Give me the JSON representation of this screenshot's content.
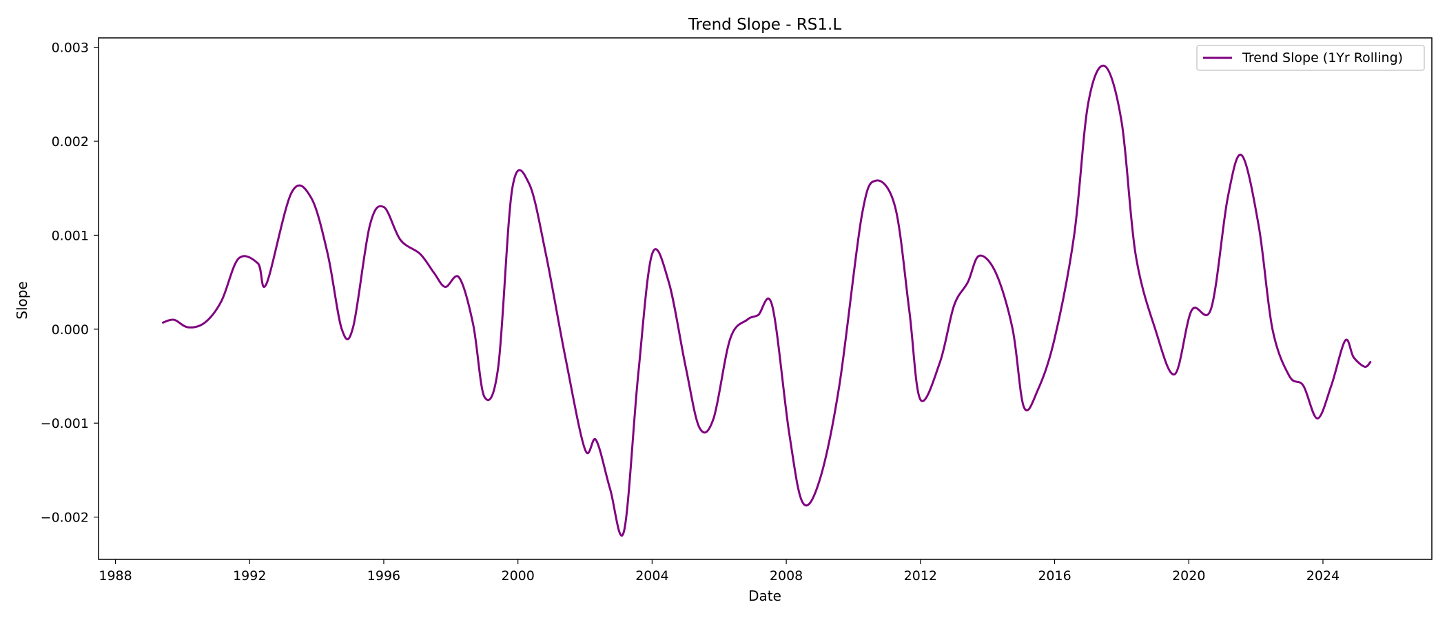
{
  "chart_data": {
    "type": "line",
    "title": "Trend Slope - RS1.L",
    "xlabel": "Date",
    "ylabel": "Slope",
    "x_ticks": [
      "1988",
      "1992",
      "1996",
      "2000",
      "2004",
      "2008",
      "2012",
      "2016",
      "2020",
      "2024"
    ],
    "y_ticks": [
      "−0.002",
      "−0.001",
      "0.000",
      "0.001",
      "0.002",
      "0.003"
    ],
    "xlim": [
      "1987-07-01",
      "2027-04-01"
    ],
    "ylim": [
      -0.00245,
      0.0031
    ],
    "grid": false,
    "legend": "top-right",
    "series": [
      {
        "name": "Trend Slope (1Yr Rolling)",
        "color": "#800080",
        "points": [
          [
            "1989-06-01",
            7e-05
          ],
          [
            "1989-10-01",
            0.0001
          ],
          [
            "1990-03-01",
            2e-05
          ],
          [
            "1990-09-01",
            7e-05
          ],
          [
            "1991-03-01",
            0.0003
          ],
          [
            "1991-09-01",
            0.00075
          ],
          [
            "1992-04-01",
            0.0007
          ],
          [
            "1992-07-01",
            0.00048
          ],
          [
            "1993-04-01",
            0.00145
          ],
          [
            "1993-11-01",
            0.0014
          ],
          [
            "1994-05-01",
            0.0008
          ],
          [
            "1994-10-01",
            0.0
          ],
          [
            "1995-02-01",
            2e-05
          ],
          [
            "1995-08-01",
            0.0011
          ],
          [
            "1996-01-01",
            0.0013
          ],
          [
            "1996-07-01",
            0.00095
          ],
          [
            "1997-02-01",
            0.0008
          ],
          [
            "1997-07-01",
            0.0006
          ],
          [
            "1997-11-01",
            0.00045
          ],
          [
            "1998-04-01",
            0.00055
          ],
          [
            "1998-09-01",
            5e-05
          ],
          [
            "1999-01-01",
            -0.00072
          ],
          [
            "1999-06-01",
            -0.0004
          ],
          [
            "1999-11-01",
            0.0015
          ],
          [
            "2000-05-01",
            0.00155
          ],
          [
            "2000-11-01",
            0.0008
          ],
          [
            "2001-06-01",
            -0.0003
          ],
          [
            "2002-01-01",
            -0.00128
          ],
          [
            "2002-05-01",
            -0.00118
          ],
          [
            "2002-10-01",
            -0.0017
          ],
          [
            "2003-03-01",
            -0.00215
          ],
          [
            "2003-08-01",
            -0.0005
          ],
          [
            "2004-01-01",
            0.0008
          ],
          [
            "2004-07-01",
            0.0005
          ],
          [
            "2005-01-01",
            -0.0004
          ],
          [
            "2005-06-01",
            -0.00105
          ],
          [
            "2005-11-01",
            -0.00095
          ],
          [
            "2006-05-01",
            -0.0001
          ],
          [
            "2006-11-01",
            0.0001
          ],
          [
            "2007-03-01",
            0.00015
          ],
          [
            "2007-08-01",
            0.00025
          ],
          [
            "2008-02-01",
            -0.0011
          ],
          [
            "2008-07-01",
            -0.00185
          ],
          [
            "2009-01-01",
            -0.0016
          ],
          [
            "2009-08-01",
            -0.0006
          ],
          [
            "2010-04-01",
            0.0012
          ],
          [
            "2010-09-01",
            0.00158
          ],
          [
            "2011-04-01",
            0.0013
          ],
          [
            "2011-09-01",
            0.0002
          ],
          [
            "2012-01-01",
            -0.00075
          ],
          [
            "2012-08-01",
            -0.00035
          ],
          [
            "2013-01-01",
            0.00025
          ],
          [
            "2013-06-01",
            0.0005
          ],
          [
            "2013-10-01",
            0.00078
          ],
          [
            "2014-04-01",
            0.0006
          ],
          [
            "2014-10-01",
            0.0
          ],
          [
            "2015-02-01",
            -0.00083
          ],
          [
            "2015-07-01",
            -0.00065
          ],
          [
            "2016-01-01",
            -0.0001
          ],
          [
            "2016-08-01",
            0.001
          ],
          [
            "2017-01-01",
            0.0024
          ],
          [
            "2017-07-01",
            0.0028
          ],
          [
            "2018-01-01",
            0.0022
          ],
          [
            "2018-06-01",
            0.0008
          ],
          [
            "2019-01-01",
            0.0
          ],
          [
            "2019-08-01",
            -0.00048
          ],
          [
            "2020-02-01",
            0.0002
          ],
          [
            "2020-09-01",
            0.00022
          ],
          [
            "2021-03-01",
            0.0014
          ],
          [
            "2021-08-01",
            0.00185
          ],
          [
            "2022-02-01",
            0.0011
          ],
          [
            "2022-07-01",
            0.0
          ],
          [
            "2023-01-01",
            -0.0005
          ],
          [
            "2023-06-01",
            -0.0006
          ],
          [
            "2023-11-01",
            -0.00095
          ],
          [
            "2024-04-01",
            -0.0006
          ],
          [
            "2024-09-01",
            -0.00012
          ],
          [
            "2024-12-01",
            -0.0003
          ],
          [
            "2025-04-01",
            -0.0004
          ],
          [
            "2025-06-01",
            -0.00035
          ]
        ]
      }
    ]
  }
}
